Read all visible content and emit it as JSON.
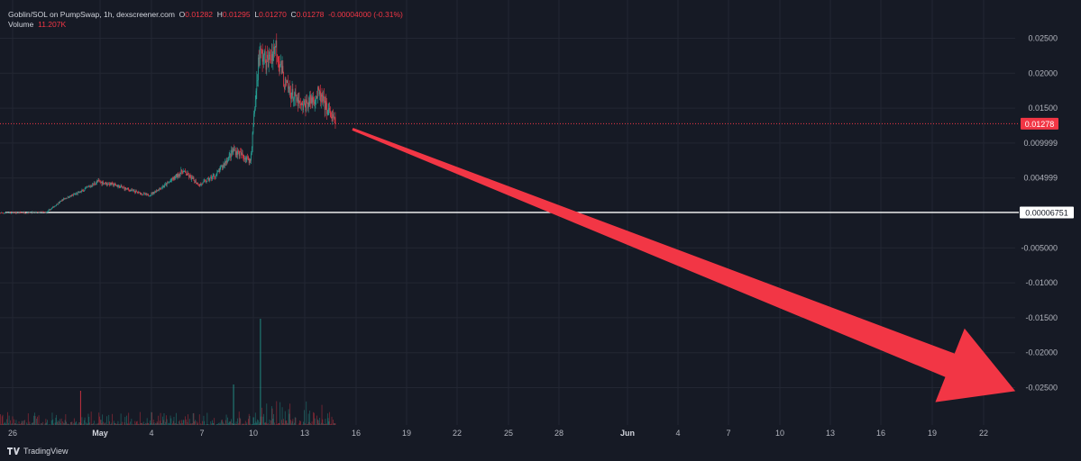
{
  "header": {
    "symbol": "Goblin/SOL on PumpSwap, 1h, dexscreener.com",
    "o_label": "O",
    "o": "0.01282",
    "h_label": "H",
    "h": "0.01295",
    "l_label": "L",
    "l": "0.01270",
    "c_label": "C",
    "c": "0.01278",
    "change": "-0.00004000 (-0.31%)",
    "volume_label": "Volume",
    "volume": "11.207K"
  },
  "branding": "TradingView",
  "colors": {
    "background": "#161a25",
    "up": "#26a69a",
    "down": "#f23645",
    "arrow": "#f23645",
    "hline": "#ffffff",
    "grid": "#232733",
    "text": "#b2b5be"
  },
  "chart_data": {
    "type": "candlestick",
    "y_ticks": [
      "0.02500",
      "0.02000",
      "0.01500",
      "0.009999",
      "0.004999",
      "-0.005000",
      "-0.01000",
      "-0.01500",
      "-0.02000",
      "-0.02500"
    ],
    "x_ticks": [
      "26",
      "May",
      "4",
      "7",
      "10",
      "13",
      "16",
      "19",
      "22",
      "25",
      "28",
      "Jun",
      "4",
      "7",
      "10",
      "13",
      "16",
      "19",
      "22"
    ],
    "last_price_label": "0.01278",
    "horizontal_line_label": "0.00006751",
    "horizontal_line_value": 6.751e-05,
    "ylim": [
      -0.0285,
      0.0285
    ],
    "price_path": [
      [
        "2025-04-25",
        0.0
      ],
      [
        "2025-04-28",
        0.0001
      ],
      [
        "2025-04-29",
        0.002
      ],
      [
        "2025-04-30",
        0.003
      ],
      [
        "2025-05-01",
        0.0045
      ],
      [
        "2025-05-02",
        0.004
      ],
      [
        "2025-05-03",
        0.0032
      ],
      [
        "2025-05-04",
        0.0025
      ],
      [
        "2025-05-05",
        0.004
      ],
      [
        "2025-05-06",
        0.006
      ],
      [
        "2025-05-07",
        0.004
      ],
      [
        "2025-05-08",
        0.0055
      ],
      [
        "2025-05-09",
        0.009
      ],
      [
        "2025-05-10",
        0.0075
      ],
      [
        "2025-05-10T12",
        0.023
      ],
      [
        "2025-05-11",
        0.0215
      ],
      [
        "2025-05-11T12",
        0.024
      ],
      [
        "2025-05-12",
        0.0185
      ],
      [
        "2025-05-13",
        0.015
      ],
      [
        "2025-05-14",
        0.017
      ],
      [
        "2025-05-15",
        0.0128
      ]
    ],
    "arrow": {
      "start": [
        "2025-05-16",
        0.012
      ],
      "end": [
        "2025-06-24",
        -0.0255
      ]
    }
  }
}
